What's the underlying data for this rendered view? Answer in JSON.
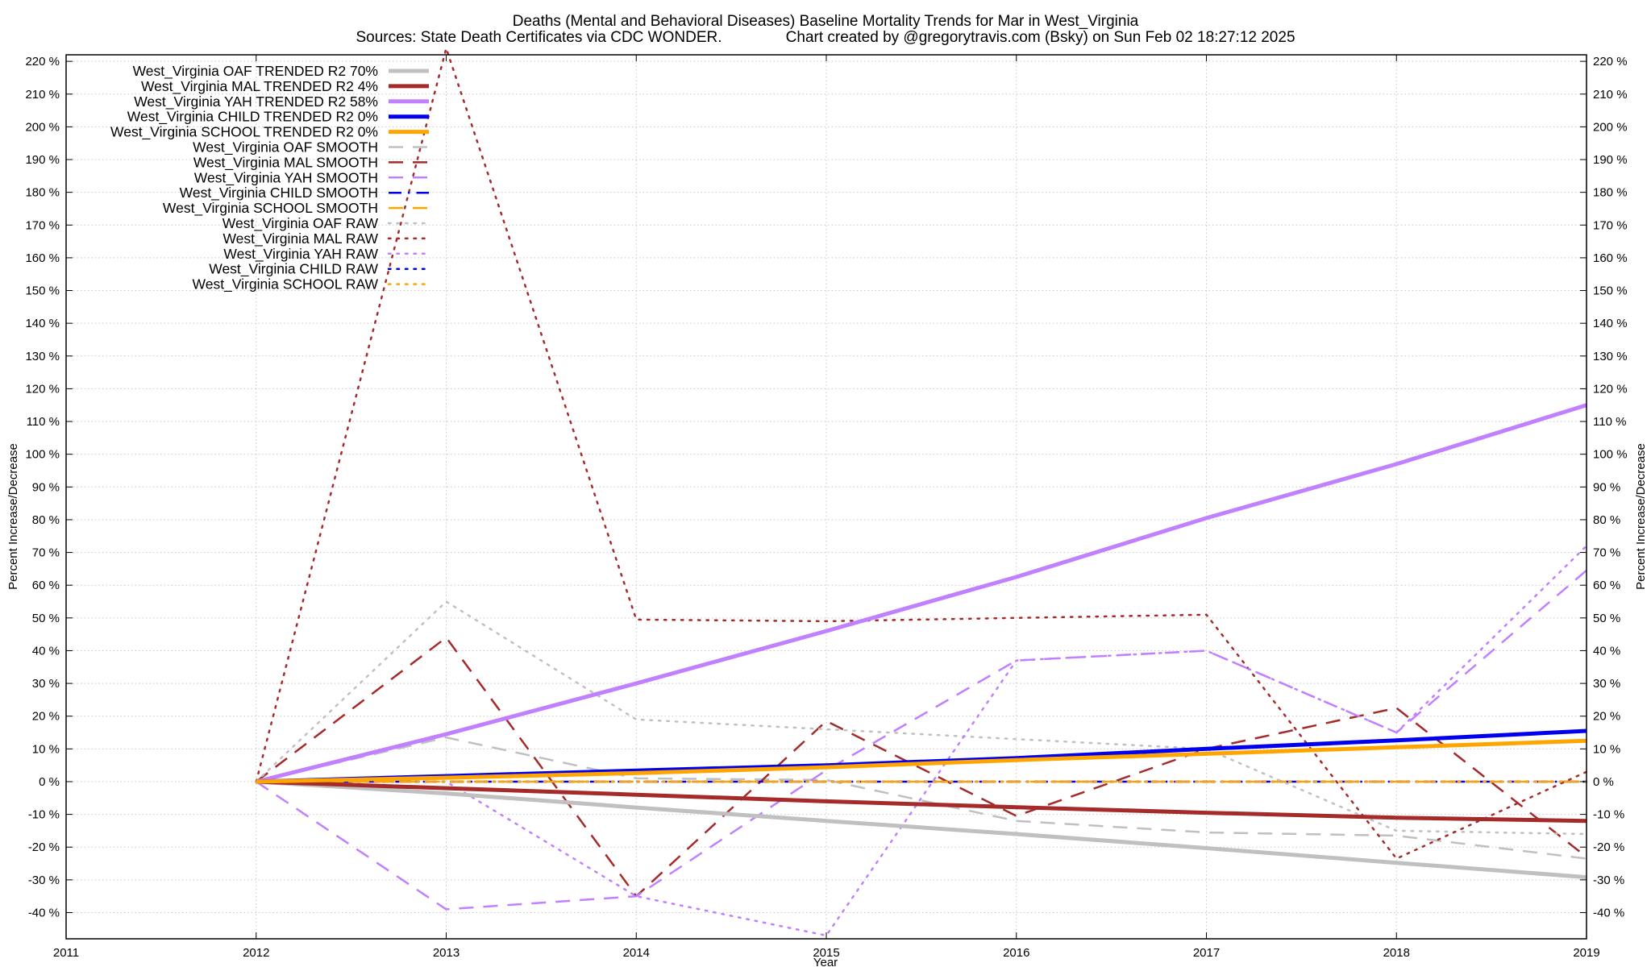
{
  "chart_data": {
    "type": "line",
    "title": "Deaths (Mental and Behavioral Diseases)  Baseline Mortality Trends for Mar in West_Virginia",
    "subtitle": "Sources: State Death Certificates via CDC WONDER.               Chart created by @gregorytravis.com (Bsky) on Sun Feb 02 18:27:12 2025",
    "xlabel": "Year",
    "ylabel": "Percent Increase/Decrease",
    "y2label": "Percent Increase/Decrease",
    "xlim": [
      2011,
      2019
    ],
    "ylim": [
      -48,
      222
    ],
    "x_ticks": [
      2011,
      2012,
      2013,
      2014,
      2015,
      2016,
      2017,
      2018,
      2019
    ],
    "y_ticks": [
      -40,
      -30,
      -20,
      -10,
      0,
      10,
      20,
      30,
      40,
      50,
      60,
      70,
      80,
      90,
      100,
      110,
      120,
      130,
      140,
      150,
      160,
      170,
      180,
      190,
      200,
      210,
      220
    ],
    "y_tick_suffix": " %",
    "grid": true,
    "legend_position": "top-left",
    "x": [
      2012,
      2013,
      2014,
      2015,
      2016,
      2017,
      2018,
      2019
    ],
    "series": [
      {
        "name": "West_Virginia OAF TRENDED R2  70%",
        "color": "#c0c0c0",
        "style": "solid",
        "width": 5,
        "values": [
          0,
          -3.6,
          -7.9,
          -12,
          -16,
          -20.3,
          -24.8,
          -29.2
        ]
      },
      {
        "name": "West_Virginia MAL TRENDED R2   4%",
        "color": "#a52a2a",
        "style": "solid",
        "width": 5,
        "values": [
          0,
          -2,
          -4,
          -6,
          -7.8,
          -9.5,
          -11,
          -12
        ]
      },
      {
        "name": "West_Virginia YAH TRENDED R2  58%",
        "color": "#c080ff",
        "style": "solid",
        "width": 5,
        "values": [
          0,
          14.5,
          30,
          46,
          62.5,
          80.5,
          97,
          115
        ]
      },
      {
        "name": "West_Virginia CHILD TRENDED R2   0%",
        "color": "#0000ee",
        "style": "solid",
        "width": 5,
        "values": [
          0,
          1.7,
          3.4,
          5,
          7.2,
          10,
          12.6,
          15.5
        ]
      },
      {
        "name": "West_Virginia SCHOOL TRENDED R2   0%",
        "color": "#ffa500",
        "style": "solid",
        "width": 5,
        "values": [
          0,
          1.2,
          2.6,
          4.4,
          6.6,
          8.5,
          10.5,
          12.5
        ]
      },
      {
        "name": "West_Virginia OAF SMOOTH",
        "color": "#c0c0c0",
        "style": "dashed",
        "width": 2.5,
        "values": [
          0,
          13.5,
          1,
          0.5,
          -12,
          -15.5,
          -16.5,
          -23.5
        ]
      },
      {
        "name": "West_Virginia MAL SMOOTH",
        "color": "#a52a2a",
        "style": "dashed",
        "width": 2.5,
        "values": [
          0,
          44,
          -35,
          18.5,
          -10.5,
          10,
          22.5,
          -23
        ]
      },
      {
        "name": "West_Virginia YAH SMOOTH",
        "color": "#c080ff",
        "style": "dashed",
        "width": 2.5,
        "values": [
          0,
          -39,
          -35,
          3.5,
          37,
          40,
          15,
          64.5
        ]
      },
      {
        "name": "West_Virginia CHILD SMOOTH",
        "color": "#0000ee",
        "style": "dashdot",
        "width": 2.5,
        "values": [
          0,
          0,
          0,
          0,
          0,
          0,
          0,
          0
        ]
      },
      {
        "name": "West_Virginia SCHOOL SMOOTH",
        "color": "#ffa500",
        "style": "dashed",
        "width": 2.5,
        "values": [
          0,
          0,
          0,
          0,
          0,
          0,
          0,
          0
        ]
      },
      {
        "name": "West_Virginia OAF RAW",
        "color": "#c0c0c0",
        "style": "dotted",
        "width": 2.5,
        "values": [
          0,
          55,
          19,
          16,
          13,
          10,
          -15,
          -16
        ]
      },
      {
        "name": "West_Virginia MAL RAW",
        "color": "#a52a2a",
        "style": "dotted",
        "width": 2.5,
        "values": [
          0,
          224,
          49.5,
          49,
          50,
          51,
          -23.5,
          3
        ]
      },
      {
        "name": "West_Virginia YAH RAW",
        "color": "#c080ff",
        "style": "dotted",
        "width": 2.5,
        "values": [
          0,
          0,
          -35,
          -47,
          37,
          40,
          15,
          72
        ]
      },
      {
        "name": "West_Virginia CHILD RAW",
        "color": "#0000ee",
        "style": "dotted",
        "width": 2.5,
        "values": [
          0,
          0,
          0,
          0,
          0,
          0,
          0,
          0
        ]
      },
      {
        "name": "West_Virginia SCHOOL RAW",
        "color": "#ffa500",
        "style": "dotted",
        "width": 2.5,
        "values": [
          0,
          0,
          0,
          0,
          0,
          0,
          0,
          0
        ]
      }
    ]
  }
}
